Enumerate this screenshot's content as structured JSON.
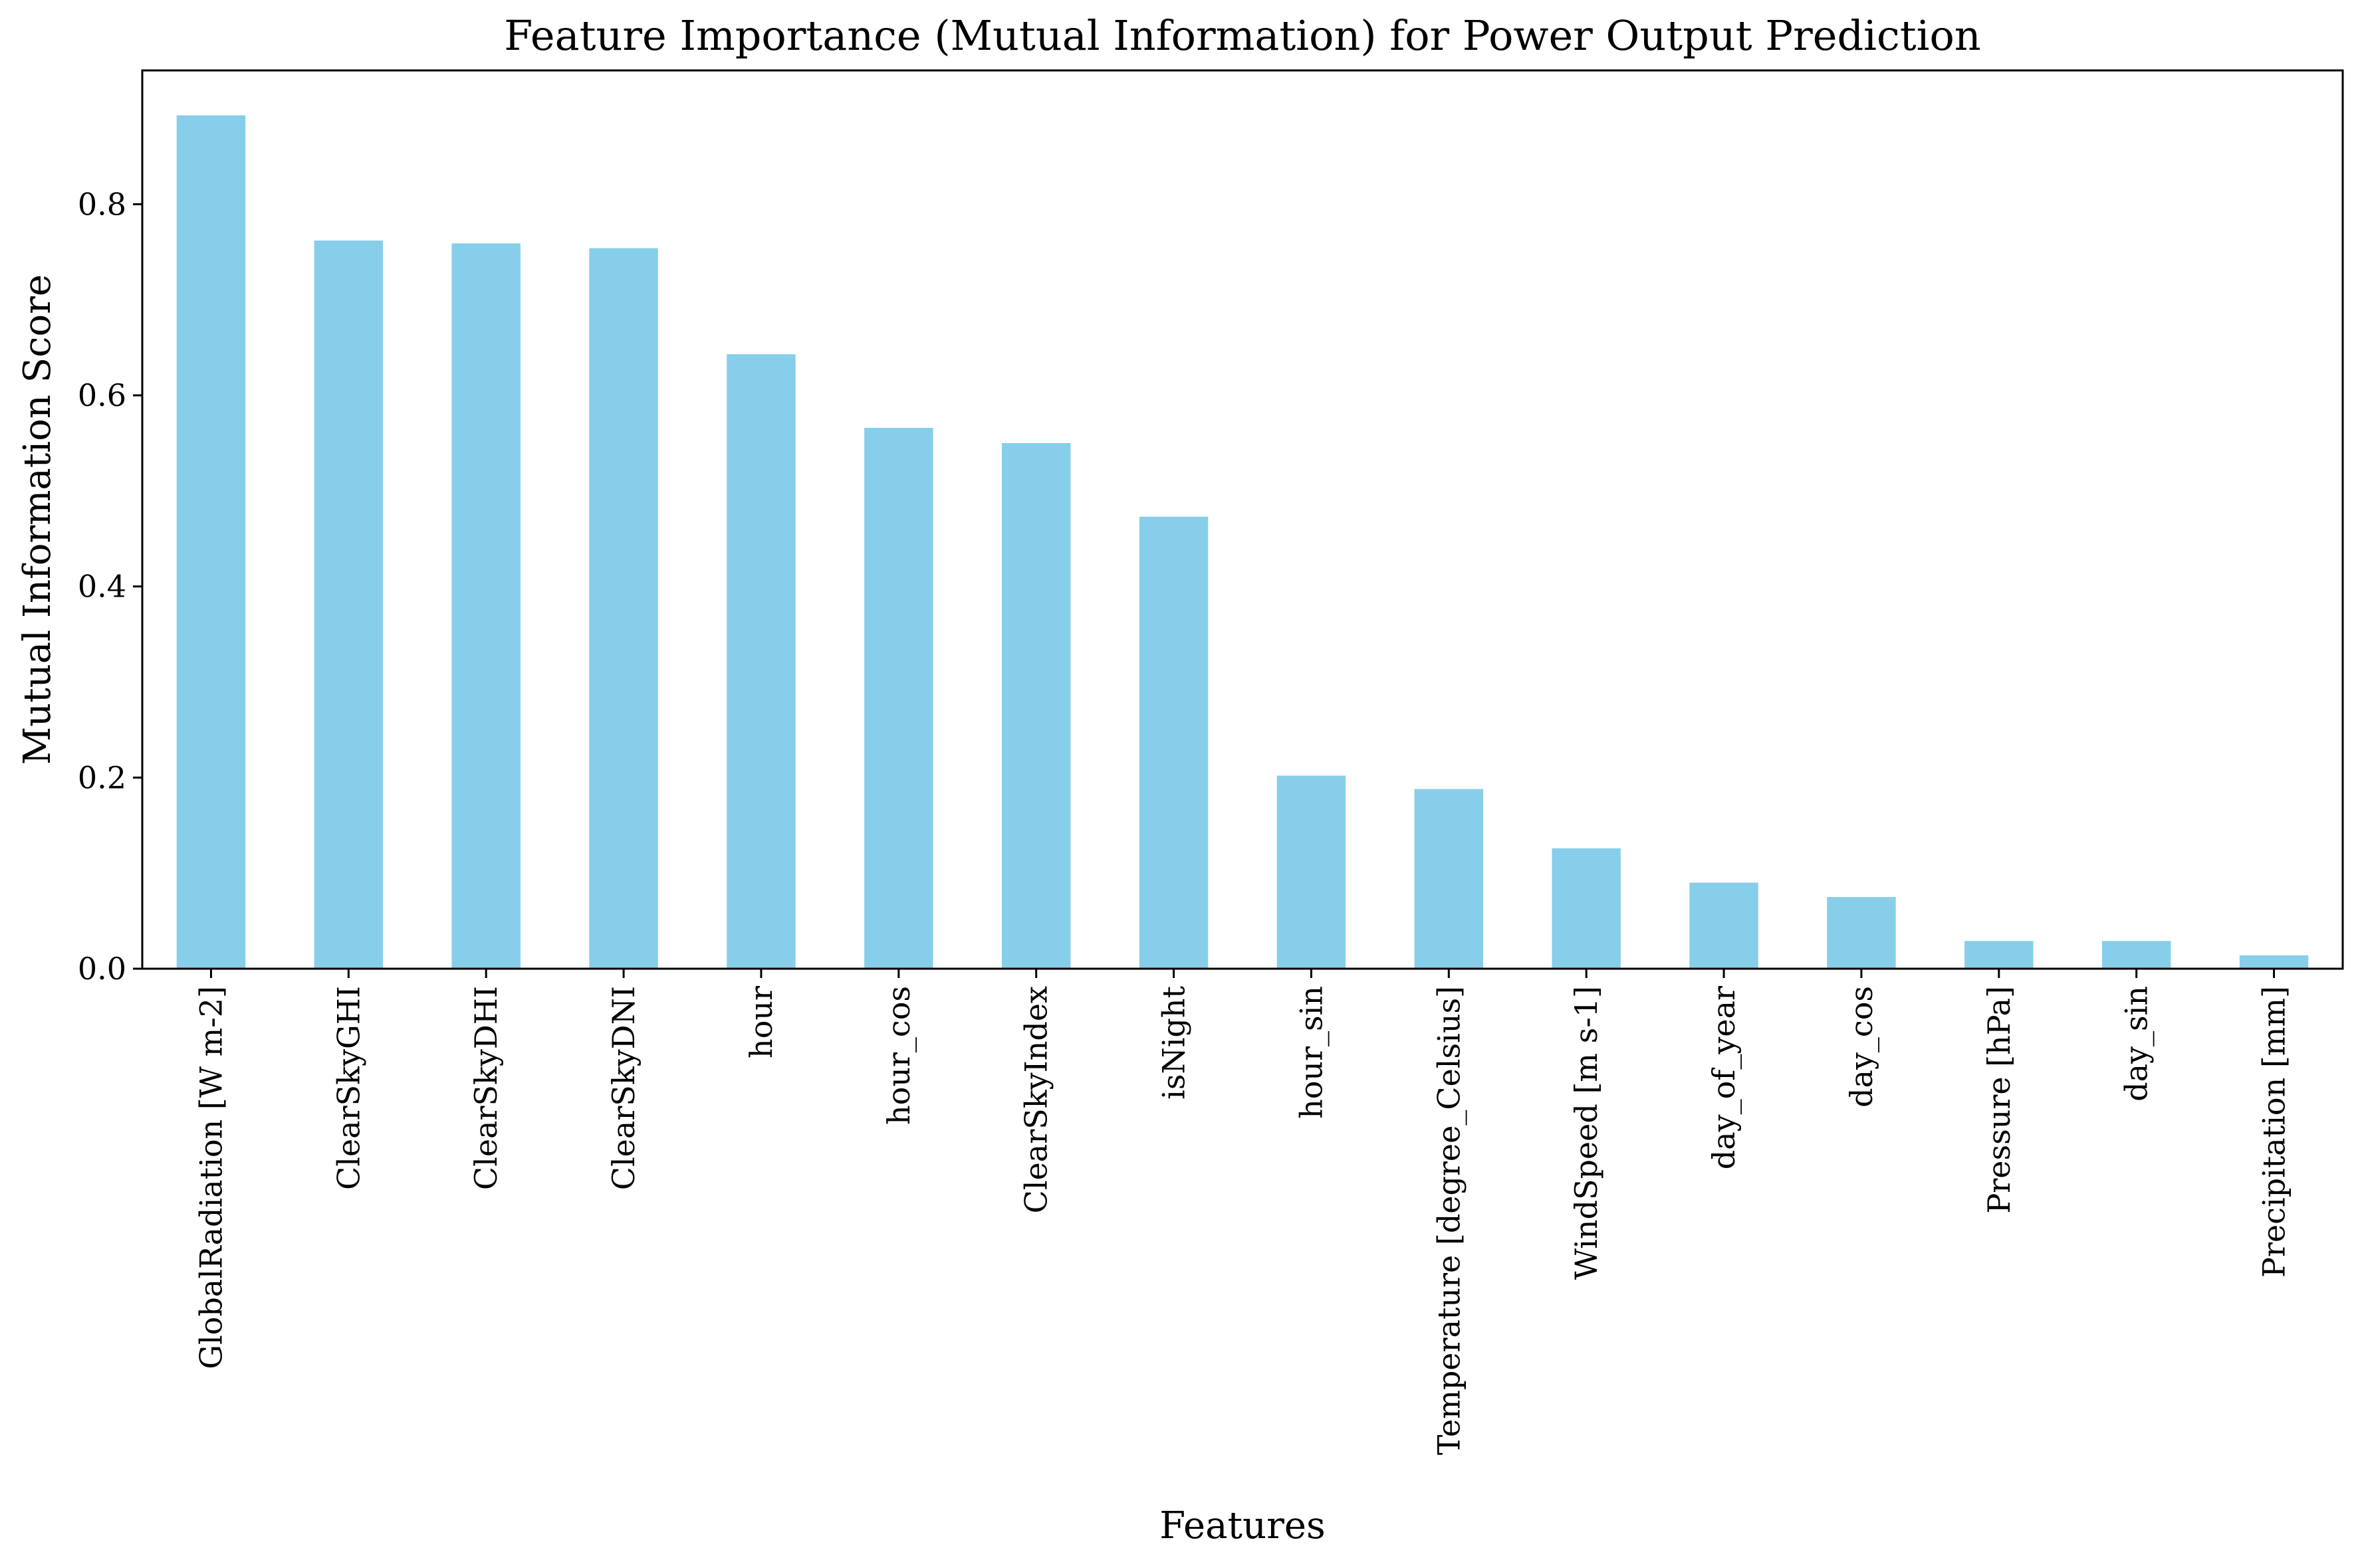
{
  "chart_data": {
    "type": "bar",
    "title": "Feature Importance (Mutual Information) for Power Output Prediction",
    "xlabel": "Features",
    "ylabel": "Mutual Information Score",
    "categories": [
      "GlobalRadiation [W m-2]",
      "ClearSkyGHI",
      "ClearSkyDHI",
      "ClearSkyDNI",
      "hour",
      "hour_cos",
      "ClearSkyIndex",
      "isNight",
      "hour_sin",
      "Temperature [degree_Celsius]",
      "WindSpeed [m s-1]",
      "day_of_year",
      "day_cos",
      "Pressure [hPa]",
      "day_sin",
      "Precipitation [mm]"
    ],
    "values": [
      0.893,
      0.762,
      0.759,
      0.754,
      0.643,
      0.566,
      0.55,
      0.473,
      0.202,
      0.188,
      0.126,
      0.09,
      0.075,
      0.029,
      0.029,
      0.014
    ],
    "ylim": [
      0,
      0.94
    ],
    "yticks": [
      0.0,
      0.2,
      0.4,
      0.6,
      0.8
    ],
    "ytick_labels": [
      "0.0",
      "0.2",
      "0.4",
      "0.6",
      "0.8"
    ],
    "grid": false,
    "legend": "none",
    "bar_color": "#87ceeb",
    "axis_color": "#000000"
  }
}
